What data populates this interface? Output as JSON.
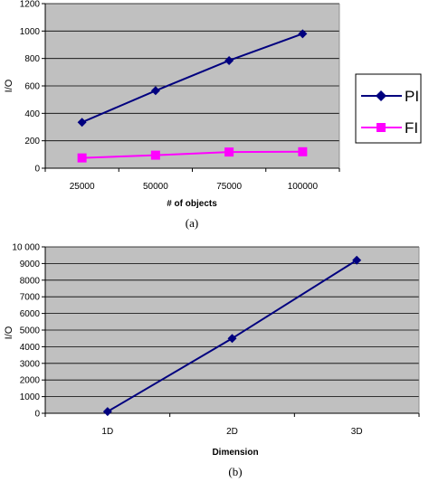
{
  "figure": {
    "caption_a": "(a)",
    "caption_b": "(b)"
  },
  "chart_data": [
    {
      "type": "line",
      "categories": [
        "25000",
        "50000",
        "75000",
        "100000"
      ],
      "series": [
        {
          "name": "PI",
          "values": [
            335,
            565,
            785,
            980
          ],
          "color": "#00007f",
          "marker": "diamond"
        },
        {
          "name": "FI",
          "values": [
            75,
            95,
            118,
            120
          ],
          "color": "#ff00ff",
          "marker": "square"
        }
      ],
      "xlabel": "# of objects",
      "ylabel": "I/O",
      "ylim": [
        0,
        1200
      ],
      "yticks": [
        "0",
        "200",
        "400",
        "600",
        "800",
        "1000",
        "1200"
      ],
      "grid": true,
      "plot_background": "#c0c0c0",
      "legend": "right"
    },
    {
      "type": "line",
      "categories": [
        "1D",
        "2D",
        "3D"
      ],
      "series": [
        {
          "values": [
            100,
            4500,
            9200
          ],
          "color": "#00007f",
          "marker": "diamond"
        }
      ],
      "xlabel": "Dimension",
      "ylabel": "I/O",
      "ylim": [
        0,
        10000
      ],
      "yticks": [
        "0",
        "1000",
        "2000",
        "3000",
        "4000",
        "5000",
        "6000",
        "7000",
        "8000",
        "9000",
        "10 000"
      ],
      "grid": true,
      "plot_background": "#c0c0c0",
      "legend": "none"
    }
  ]
}
